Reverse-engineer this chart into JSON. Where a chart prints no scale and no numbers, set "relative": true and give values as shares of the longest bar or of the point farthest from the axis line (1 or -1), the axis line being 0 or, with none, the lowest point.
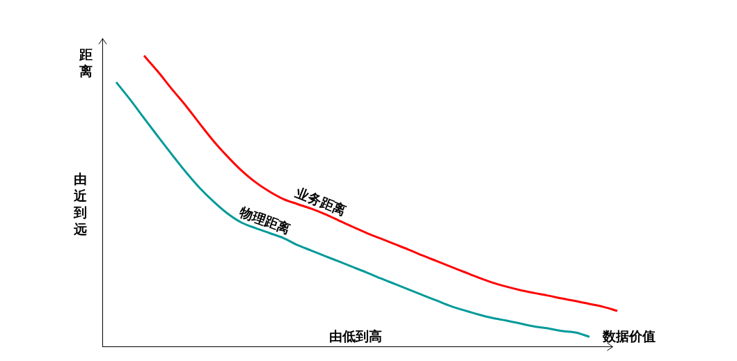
{
  "chart_data": {
    "type": "line",
    "relative": true,
    "ylabel": "距离",
    "xlabel": "数据价值",
    "annotations": [
      "由近到远",
      "由低到高"
    ],
    "categories": [
      null,
      null,
      null,
      null,
      null,
      null,
      null,
      null,
      null,
      null,
      null,
      null,
      null,
      null,
      null,
      null,
      null,
      null,
      null,
      null,
      null,
      null,
      null,
      null,
      null,
      null,
      null,
      null,
      null,
      null,
      null,
      null,
      null,
      null,
      null,
      null,
      null
    ],
    "series": [
      {
        "name": "业务距离",
        "color": "#ff0000",
        "values": [
          null,
          null,
          1,
          0.945,
          0.885,
          0.828,
          0.766,
          0.706,
          0.653,
          0.605,
          0.565,
          0.533,
          0.507,
          0.49,
          0.474,
          0.455,
          0.433,
          0.411,
          0.39,
          0.371,
          0.352,
          0.333,
          0.313,
          0.294,
          0.275,
          0.256,
          0.237,
          0.22,
          0.206,
          0.194,
          0.184,
          0.175,
          0.165,
          0.156,
          0.146,
          0.136,
          0.122
        ]
      },
      {
        "name": "物理距离",
        "color": "#009999",
        "values": [
          0.909,
          0.849,
          0.785,
          0.722,
          0.66,
          0.6,
          0.545,
          0.498,
          0.457,
          0.426,
          0.407,
          0.39,
          0.373,
          0.349,
          0.33,
          0.311,
          0.292,
          0.273,
          0.254,
          0.234,
          0.215,
          0.196,
          0.177,
          0.158,
          0.139,
          0.124,
          0.11,
          0.098,
          0.089,
          0.079,
          0.069,
          0.062,
          0.053,
          0.048,
          0.033,
          null,
          null
        ]
      }
    ],
    "legend": false,
    "marker": "none",
    "line_style": "solid"
  }
}
